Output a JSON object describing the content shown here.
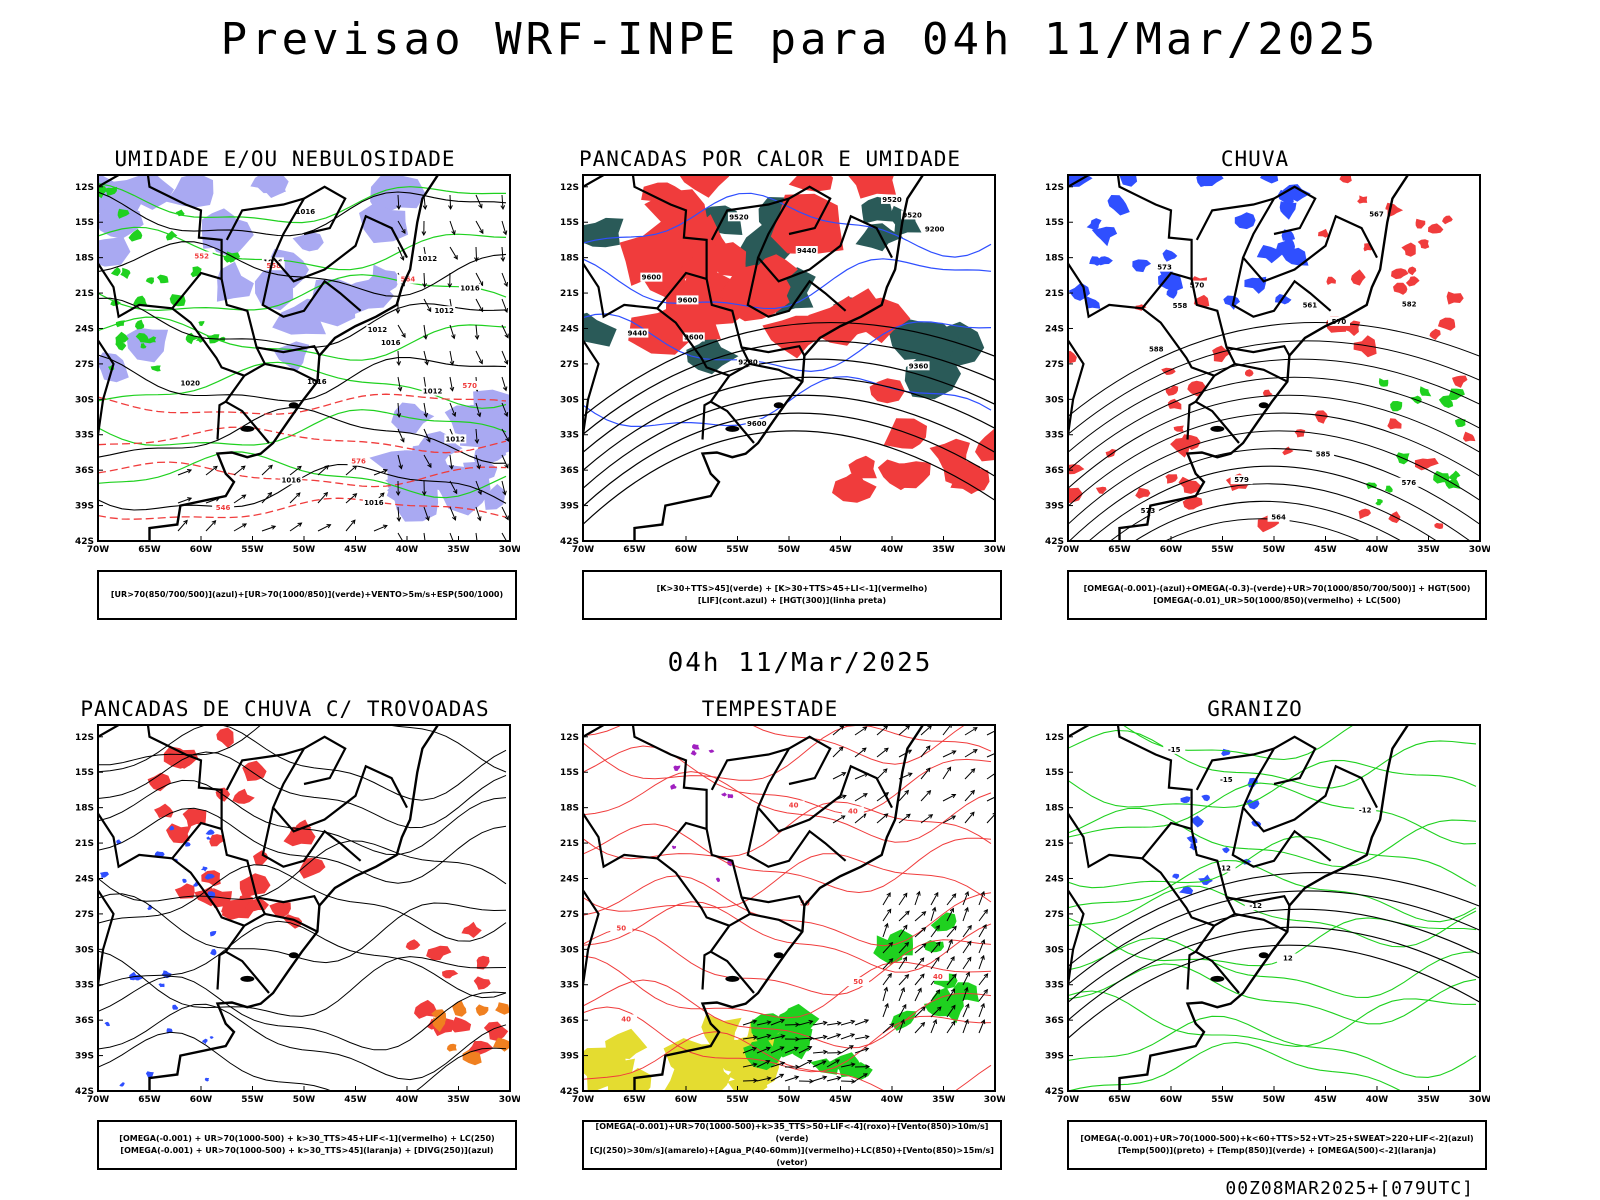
{
  "page": {
    "title": "Previsao WRF-INPE  para 04h 11/Mar/2025",
    "mid_title": "04h 11/Mar/2025",
    "footer": "00Z08MAR2025+[079UTC]"
  },
  "axes": {
    "lat_labels": [
      "12S",
      "15S",
      "18S",
      "21S",
      "24S",
      "27S",
      "30S",
      "33S",
      "36S",
      "39S",
      "42S"
    ],
    "lon_labels": [
      "70W",
      "65W",
      "60W",
      "55W",
      "50W",
      "45W",
      "40W",
      "35W",
      "30W"
    ]
  },
  "panels": [
    {
      "title": "UMIDADE E/OU NEBULOSIDADE",
      "legend": [
        "[UR>70(850/700/500)](azul)+[UR>70(1000/850)](verde)+VENTO>5m/s+ESP(500/1000)"
      ],
      "contour_labels": [
        "1012",
        "1012",
        "1012",
        "1012",
        "1016",
        "1016",
        "1016",
        "1020",
        "1016",
        "1016",
        "1016",
        "1012",
        "1016"
      ],
      "red_labels": [
        "570",
        "576",
        "564",
        "558",
        "552",
        "546"
      ]
    },
    {
      "title": "PANCADAS POR CALOR E UMIDADE",
      "legend": [
        "[K>30+TTS>45](verde) + [K>30+TTS>45+LI<-1](vermelho)",
        "[LIF](cont.azul) + [HGT(300)](linha preta)"
      ],
      "contour_labels": [
        "9600",
        "9600",
        "9600",
        "9600",
        "9520",
        "9520",
        "9440",
        "9520",
        "9440",
        "9360",
        "9280",
        "9200"
      ]
    },
    {
      "title": "CHUVA",
      "legend": [
        "[OMEGA(-0.001)-(azul)+OMEGA(-0.3)-(verde)+UR>70(1000/850/700/500)] + HGT(500)",
        "[OMEGA(-0.01)_UR>50(1000/850)(vermelho) + LC(500)"
      ],
      "contour_labels": [
        "585",
        "588",
        "582",
        "579",
        "576",
        "573",
        "570",
        "567",
        "564",
        "561",
        "558",
        "573",
        "570"
      ]
    },
    {
      "title": "PANCADAS DE CHUVA C/ TROVOADAS",
      "legend": [
        "[OMEGA(-0.001) + UR>70(1000-500) + k>30_TTS>45+LIF<-1](vermelho) + LC(250)",
        "[OMEGA(-0.001) + UR>70(1000-500) + k>30_TTS>45](laranja) + [DIVG(250)](azul)"
      ]
    },
    {
      "title": "TEMPESTADE",
      "legend": [
        "[OMEGA(-0.001)+UR>70(1000-500)+k>35_TTS>50+LIF<-4](roxo)+[Vento(850)>10m/s](verde)",
        "[CJ(250)>30m/s](amarelo)+[Agua_P(40-60mm)](vermelho)+LC(850)+[Vento(850)>15m/s](vetor)"
      ],
      "contour_labels": [
        "40",
        "40",
        "50",
        "40",
        "50",
        "50",
        "40"
      ]
    },
    {
      "title": "GRANIZO",
      "legend": [
        "[OMEGA(-0.001)+UR>70(1000-500)+k<60+TTS>52+VT>25+SWEAT>220+LIF<-2](azul)",
        "[Temp(500)](preto) + [Temp(850)](verde) + [OMEGA(500)<-2](laranja)"
      ],
      "contour_labels": [
        "-12",
        "-12",
        "-15",
        "-15",
        "-12",
        "12"
      ]
    }
  ],
  "colors": {
    "blue": "#2f4fff",
    "lavender": "#a9a9f2",
    "green": "#1fd11f",
    "red": "#f03c3c",
    "darkgreen": "#2a5a58",
    "orange": "#f08020",
    "yellow": "#e4dc30",
    "purple": "#a020c0"
  }
}
